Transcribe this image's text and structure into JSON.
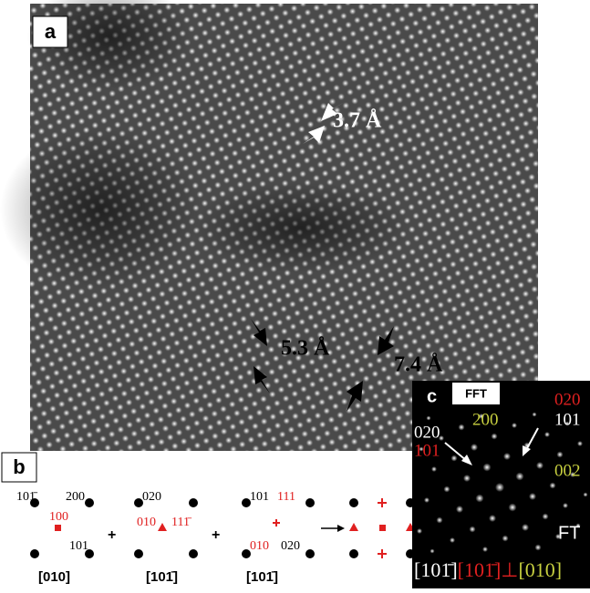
{
  "panel_a": {
    "label": "a",
    "annotations": [
      "3.7 Å",
      "5.3 Å",
      "7.4 Å"
    ]
  },
  "panel_b": {
    "label": "b",
    "patterns": [
      {
        "zone": "[010]",
        "spots": [
          "101̄",
          "200",
          "100",
          "101"
        ]
      },
      {
        "zone": "[101̄]",
        "spots": [
          "020",
          "010",
          "111̄"
        ]
      },
      {
        "zone": "[101̄]",
        "spots": [
          "101",
          "111",
          "010",
          "020"
        ]
      }
    ]
  },
  "panel_c": {
    "label": "c",
    "title": "FFT",
    "spots": [
      "020",
      "101",
      "200",
      "020",
      "101",
      "002"
    ],
    "caption": "FT",
    "zone_axes": [
      "[101̄]",
      "[101̄]⊥",
      "[010]"
    ]
  }
}
